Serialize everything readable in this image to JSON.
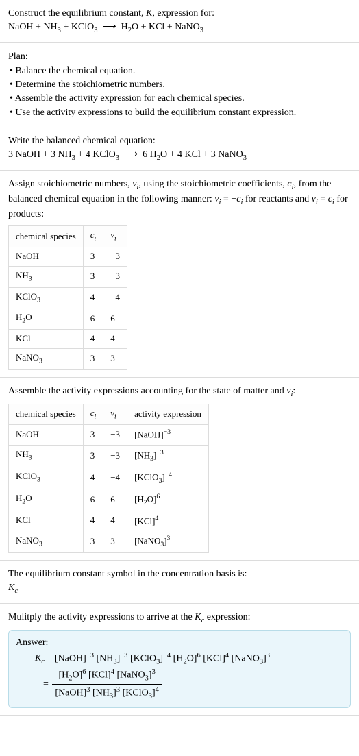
{
  "colors": {
    "text": "#000000",
    "border": "#dcdcdc",
    "answer_bg": "#eaf6fb",
    "answer_border": "#b8dce8",
    "bg": "#ffffff"
  },
  "typography": {
    "font_family": "Georgia, Times New Roman, serif",
    "base_fontsize": 14,
    "table_fontsize": 13
  },
  "card1": {
    "line1": "Construct the equilibrium constant, <span class=\"ital\">K</span>, expression for:",
    "line2": "NaOH + NH<sub>3</sub> + KClO<sub>3</sub>&nbsp;&nbsp;⟶&nbsp;&nbsp;H<sub>2</sub>O + KCl + NaNO<sub>3</sub>"
  },
  "card2": {
    "heading": "Plan:",
    "b1": "• Balance the chemical equation.",
    "b2": "• Determine the stoichiometric numbers.",
    "b3": "• Assemble the activity expression for each chemical species.",
    "b4": "• Use the activity expressions to build the equilibrium constant expression."
  },
  "card3": {
    "line1": "Write the balanced chemical equation:",
    "line2": "3 NaOH + 3 NH<sub>3</sub> + 4 KClO<sub>3</sub>&nbsp;&nbsp;⟶&nbsp;&nbsp;6 H<sub>2</sub>O + 4 KCl + 3 NaNO<sub>3</sub>"
  },
  "card4": {
    "intro": "Assign stoichiometric numbers, <span class=\"ital\">ν<sub>i</sub></span>, using the stoichiometric coefficients, <span class=\"ital\">c<sub>i</sub></span>, from the balanced chemical equation in the following manner: <span class=\"ital\">ν<sub>i</sub></span> = −<span class=\"ital\">c<sub>i</sub></span> for reactants and <span class=\"ital\">ν<sub>i</sub></span> = <span class=\"ital\">c<sub>i</sub></span> for products:",
    "columns": [
      "chemical species",
      "<span class=\"ital\">c<sub>i</sub></span>",
      "<span class=\"ital\">ν<sub>i</sub></span>"
    ],
    "rows": [
      [
        "NaOH",
        "3",
        "−3"
      ],
      [
        "NH<sub>3</sub>",
        "3",
        "−3"
      ],
      [
        "KClO<sub>3</sub>",
        "4",
        "−4"
      ],
      [
        "H<sub>2</sub>O",
        "6",
        "6"
      ],
      [
        "KCl",
        "4",
        "4"
      ],
      [
        "NaNO<sub>3</sub>",
        "3",
        "3"
      ]
    ]
  },
  "card5": {
    "intro": "Assemble the activity expressions accounting for the state of matter and <span class=\"ital\">ν<sub>i</sub></span>:",
    "columns": [
      "chemical species",
      "<span class=\"ital\">c<sub>i</sub></span>",
      "<span class=\"ital\">ν<sub>i</sub></span>",
      "activity expression"
    ],
    "rows": [
      [
        "NaOH",
        "3",
        "−3",
        "[NaOH]<sup>−3</sup>"
      ],
      [
        "NH<sub>3</sub>",
        "3",
        "−3",
        "[NH<sub>3</sub>]<sup>−3</sup>"
      ],
      [
        "KClO<sub>3</sub>",
        "4",
        "−4",
        "[KClO<sub>3</sub>]<sup>−4</sup>"
      ],
      [
        "H<sub>2</sub>O",
        "6",
        "6",
        "[H<sub>2</sub>O]<sup>6</sup>"
      ],
      [
        "KCl",
        "4",
        "4",
        "[KCl]<sup>4</sup>"
      ],
      [
        "NaNO<sub>3</sub>",
        "3",
        "3",
        "[NaNO<sub>3</sub>]<sup>3</sup>"
      ]
    ]
  },
  "card6": {
    "line1": "The equilibrium constant symbol in the concentration basis is:",
    "line2": "<span class=\"ital\">K<sub>c</sub></span>"
  },
  "card7": {
    "line1": "Mulitply the activity expressions to arrive at the <span class=\"ital\">K<sub>c</sub></span> expression:",
    "answer_label": "Answer:",
    "kc_line": "<span class=\"ital\">K<sub>c</sub></span> = [NaOH]<sup>−3</sup> [NH<sub>3</sub>]<sup>−3</sup> [KClO<sub>3</sub>]<sup>−4</sup> [H<sub>2</sub>O]<sup>6</sup> [KCl]<sup>4</sup> [NaNO<sub>3</sub>]<sup>3</sup>",
    "frac_num": "[H<sub>2</sub>O]<sup>6</sup> [KCl]<sup>4</sup> [NaNO<sub>3</sub>]<sup>3</sup>",
    "frac_den": "[NaOH]<sup>3</sup> [NH<sub>3</sub>]<sup>3</sup> [KClO<sub>3</sub>]<sup>4</sup>"
  }
}
